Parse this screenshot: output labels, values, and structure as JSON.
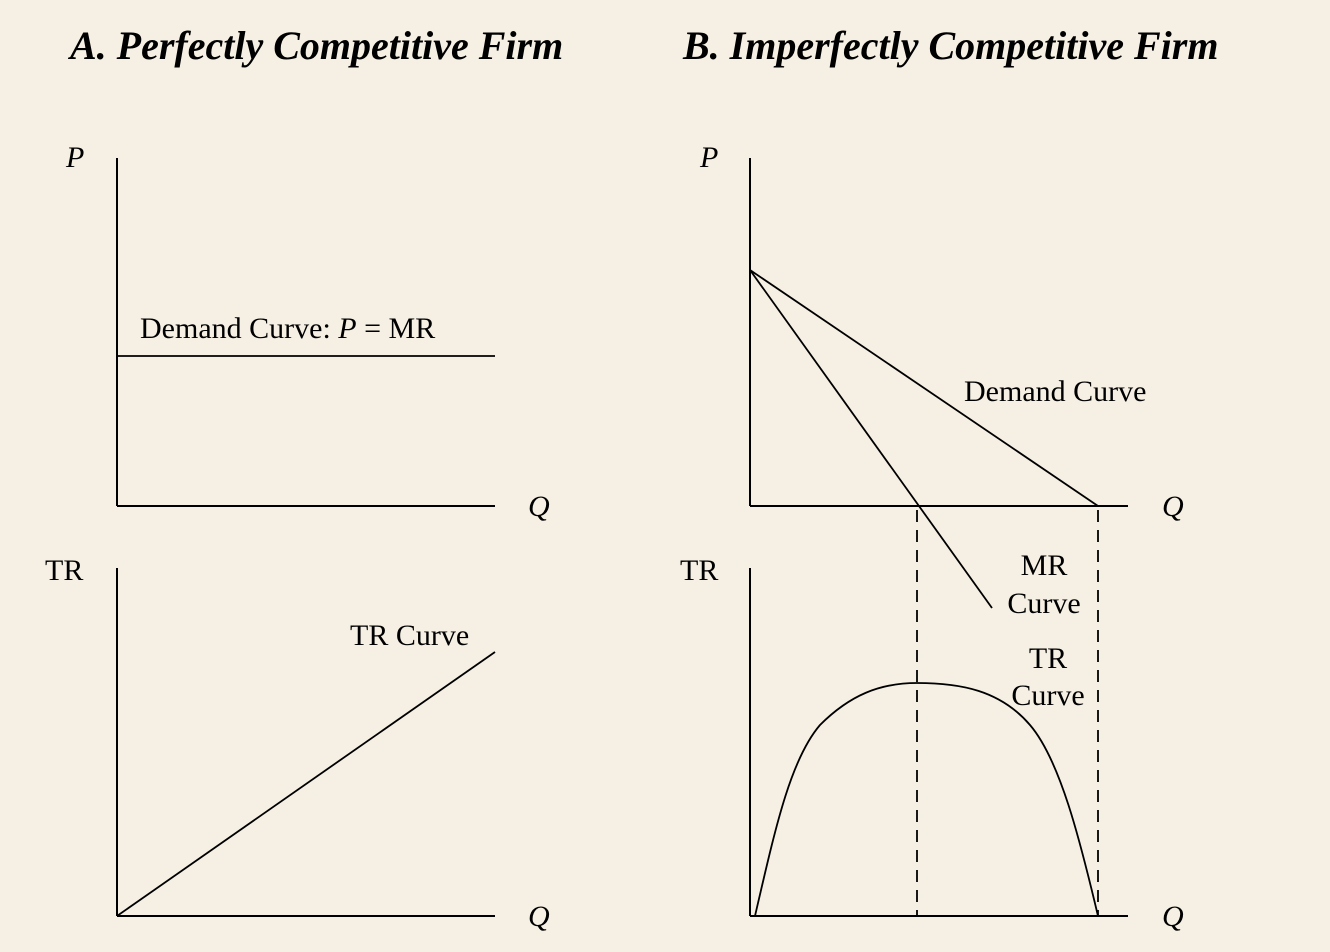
{
  "panel_a": {
    "title": "A. Perfectly Competitive Firm",
    "top_y_label": "P",
    "top_x_label": "Q",
    "demand_label_prefix": "Demand Curve: ",
    "demand_label_p": "P",
    "demand_label_suffix": " = MR",
    "bottom_y_label": "TR",
    "bottom_x_label": "Q",
    "tr_label": "TR Curve"
  },
  "panel_b": {
    "title": "B. Imperfectly Competitive Firm",
    "top_y_label": "P",
    "top_x_label": "Q",
    "demand_label": "Demand Curve",
    "mr_label_line1": "MR",
    "mr_label_line2": "Curve",
    "bottom_y_label": "TR",
    "bottom_x_label": "Q",
    "tr_label_line1": "TR",
    "tr_label_line2": "Curve"
  }
}
